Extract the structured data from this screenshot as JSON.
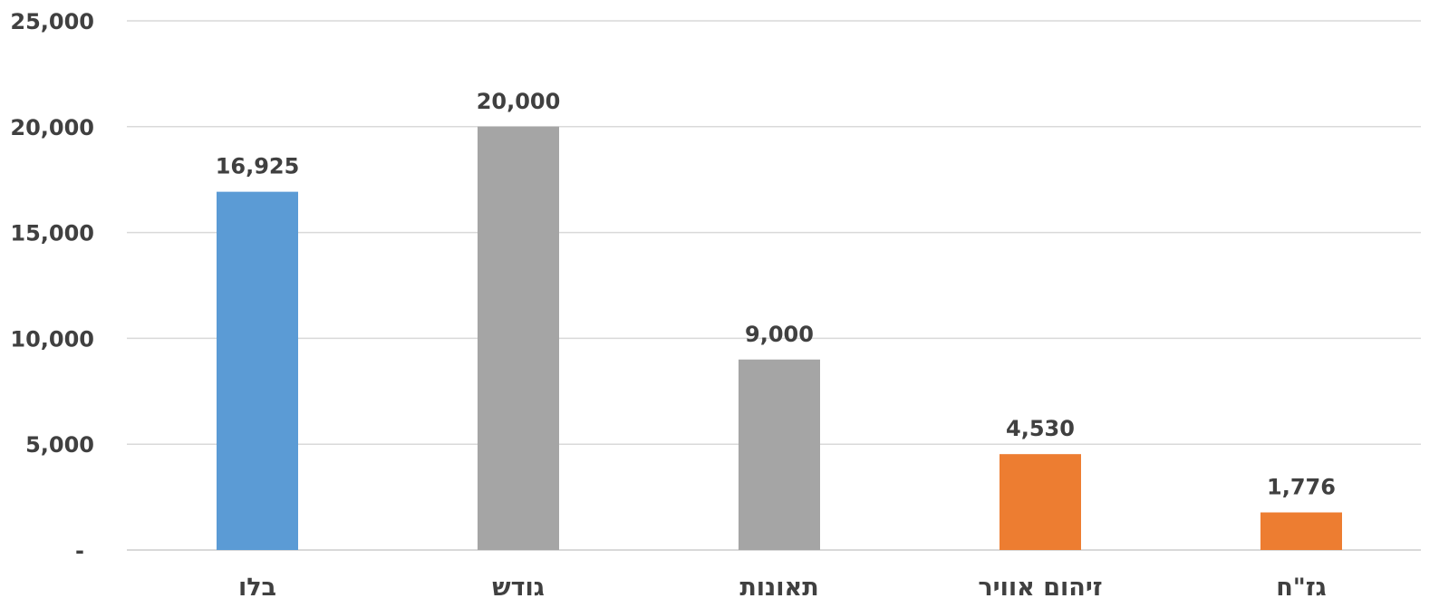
{
  "chart_data": {
    "type": "bar",
    "categories": [
      "בלו",
      "גודש",
      "תאונות",
      "זיהום אוויר",
      "גז\"ח"
    ],
    "values": [
      16925,
      20000,
      9000,
      4530,
      1776
    ],
    "value_labels": [
      "16,925",
      "20,000",
      "9,000",
      "4,530",
      "1,776"
    ],
    "bar_colors": [
      "#5b9bd5",
      "#a5a5a5",
      "#a5a5a5",
      "#ed7d31",
      "#ed7d31"
    ],
    "ylim": [
      0,
      25000
    ],
    "yticks": [
      0,
      5000,
      10000,
      15000,
      20000,
      25000
    ],
    "ytick_labels": [
      "-",
      "5,000",
      "10,000",
      "15,000",
      "20,000",
      "25,000"
    ],
    "grid": true,
    "legend": "none",
    "title": "",
    "xlabel": "",
    "ylabel": ""
  }
}
